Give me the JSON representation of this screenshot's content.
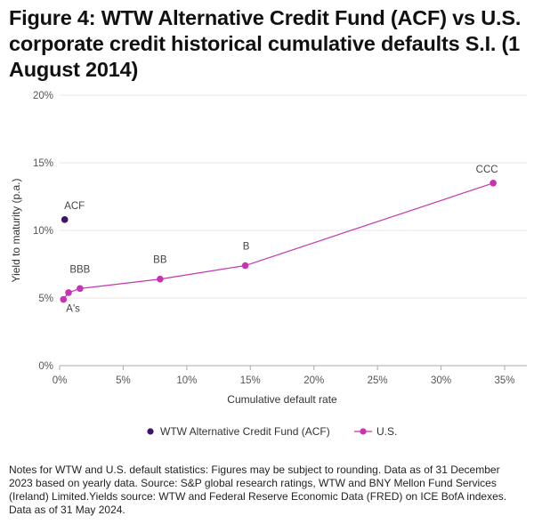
{
  "title": "Figure 4: WTW Alternative Credit Fund (ACF) vs U.S. corporate credit historical cumulative defaults S.I. (1 August 2014)",
  "notes": "Notes for WTW and U.S. default statistics: Figures may be subject to rounding. Data as of 31 December 2023 based on yearly data. Source: S&P global research ratings, WTW and BNY Mellon Fund Services (Ireland) Limited.Yields source: WTW and Federal Reserve Economic Data (FRED) on ICE BofA indexes. Data as of 31 May 2024.",
  "chart_data": {
    "type": "scatter",
    "xlabel": "Cumulative default rate",
    "ylabel": "Yield to maturity (p.a.)",
    "xlim": [
      0,
      35
    ],
    "ylim": [
      0,
      20
    ],
    "x_ticks": [
      "0%",
      "5%",
      "10%",
      "15%",
      "20%",
      "25%",
      "30%",
      "35%"
    ],
    "y_ticks": [
      "0%",
      "5%",
      "10%",
      "15%",
      "20%"
    ],
    "grid": "horizontal",
    "legend_position": "bottom",
    "series": [
      {
        "name": "WTW Alternative Credit Fund (ACF)",
        "color": "#3d1466",
        "marker": "dot",
        "points": [
          {
            "label": "ACF",
            "x": 0.4,
            "y": 10.8
          }
        ]
      },
      {
        "name": "U.S.",
        "color": "#c832b4",
        "marker": "dot-line",
        "points": [
          {
            "label": "A's",
            "x": 0.3,
            "y": 4.9
          },
          {
            "label": "",
            "x": 0.7,
            "y": 5.4
          },
          {
            "label": "BBB",
            "x": 1.6,
            "y": 5.7
          },
          {
            "label": "BB",
            "x": 7.9,
            "y": 6.4
          },
          {
            "label": "B",
            "x": 14.6,
            "y": 7.4
          },
          {
            "label": "CCC",
            "x": 34.1,
            "y": 13.5
          }
        ]
      }
    ]
  }
}
